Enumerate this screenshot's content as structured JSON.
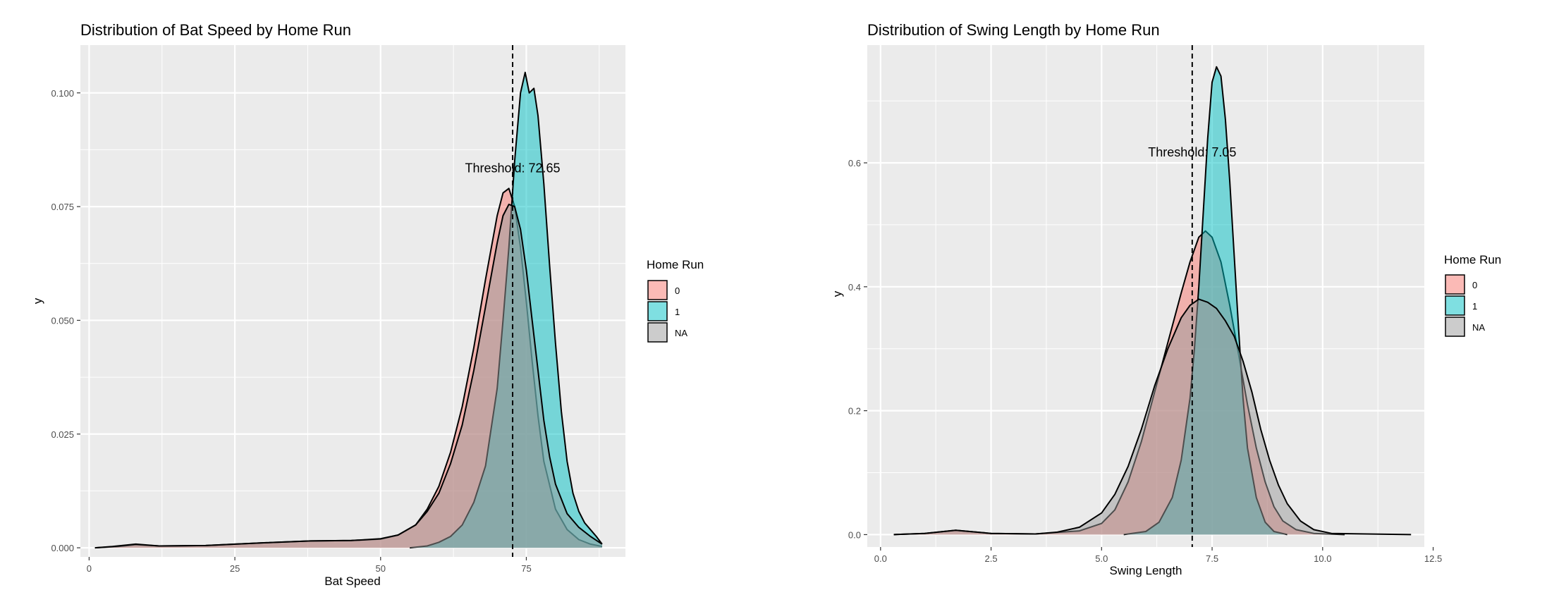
{
  "chart_data": [
    {
      "type": "area",
      "title": "Distribution of Bat Speed by Home Run",
      "xlabel": "Bat Speed",
      "ylabel": "y",
      "xlim": [
        -1.5,
        92
      ],
      "ylim": [
        -0.002,
        0.1105
      ],
      "x_ticks": [
        0,
        25,
        50,
        75
      ],
      "x_tick_labels": [
        "0",
        "25",
        "50",
        "75"
      ],
      "y_ticks": [
        0,
        0.025,
        0.05,
        0.075,
        0.1
      ],
      "y_tick_labels": [
        "0.000",
        "0.025",
        "0.050",
        "0.075",
        "0.100"
      ],
      "grid": true,
      "legend": {
        "title": "Home Run",
        "position": "right"
      },
      "annotation": {
        "text": "Threshold: 72.65",
        "x": 72.65,
        "y": 0.0825
      },
      "threshold_x": 72.65,
      "series": [
        {
          "name": "0",
          "color": "#F8766D",
          "points": [
            [
              1,
              0
            ],
            [
              5,
              0.0003
            ],
            [
              8,
              0.0007
            ],
            [
              12,
              0.0004
            ],
            [
              20,
              0.0005
            ],
            [
              30,
              0.0011
            ],
            [
              38,
              0.0015
            ],
            [
              45,
              0.0016
            ],
            [
              50,
              0.0019
            ],
            [
              53,
              0.0028
            ],
            [
              56,
              0.005
            ],
            [
              58,
              0.0085
            ],
            [
              60,
              0.0135
            ],
            [
              62,
              0.021
            ],
            [
              64,
              0.031
            ],
            [
              66,
              0.044
            ],
            [
              68,
              0.059
            ],
            [
              70,
              0.073
            ],
            [
              71,
              0.078
            ],
            [
              72,
              0.079
            ],
            [
              73,
              0.075
            ],
            [
              74,
              0.066
            ],
            [
              75,
              0.054
            ],
            [
              76,
              0.041
            ],
            [
              77,
              0.029
            ],
            [
              78,
              0.019
            ],
            [
              80,
              0.0085
            ],
            [
              82,
              0.004
            ],
            [
              84,
              0.0018
            ],
            [
              86,
              0.0008
            ],
            [
              88,
              0.0003
            ]
          ]
        },
        {
          "name": "1",
          "color": "#00BFC4",
          "points": [
            [
              55,
              0
            ],
            [
              58,
              0.0004
            ],
            [
              60,
              0.0012
            ],
            [
              62,
              0.0025
            ],
            [
              64,
              0.005
            ],
            [
              66,
              0.01
            ],
            [
              68,
              0.018
            ],
            [
              70,
              0.035
            ],
            [
              71,
              0.05
            ],
            [
              72,
              0.066
            ],
            [
              73,
              0.085
            ],
            [
              74,
              0.1
            ],
            [
              74.8,
              0.1045
            ],
            [
              75.5,
              0.1
            ],
            [
              76.3,
              0.101
            ],
            [
              77,
              0.095
            ],
            [
              78,
              0.08
            ],
            [
              79,
              0.062
            ],
            [
              80,
              0.045
            ],
            [
              81,
              0.03
            ],
            [
              82,
              0.019
            ],
            [
              83,
              0.012
            ],
            [
              84,
              0.008
            ],
            [
              85,
              0.0055
            ],
            [
              86,
              0.004
            ],
            [
              87,
              0.0025
            ],
            [
              88,
              0.0008
            ]
          ]
        },
        {
          "name": "NA",
          "color": "#999999",
          "points": [
            [
              1,
              0
            ],
            [
              4,
              0.0003
            ],
            [
              8,
              0.0008
            ],
            [
              12,
              0.0004
            ],
            [
              20,
              0.0005
            ],
            [
              30,
              0.0011
            ],
            [
              38,
              0.0015
            ],
            [
              45,
              0.0016
            ],
            [
              50,
              0.002
            ],
            [
              53,
              0.0028
            ],
            [
              56,
              0.005
            ],
            [
              58,
              0.008
            ],
            [
              60,
              0.012
            ],
            [
              62,
              0.0185
            ],
            [
              64,
              0.027
            ],
            [
              66,
              0.039
            ],
            [
              68,
              0.053
            ],
            [
              70,
              0.067
            ],
            [
              71,
              0.073
            ],
            [
              72,
              0.0755
            ],
            [
              73,
              0.075
            ],
            [
              74,
              0.07
            ],
            [
              75,
              0.061
            ],
            [
              76,
              0.05
            ],
            [
              77,
              0.039
            ],
            [
              78,
              0.028
            ],
            [
              79,
              0.02
            ],
            [
              80,
              0.014
            ],
            [
              82,
              0.0075
            ],
            [
              84,
              0.0045
            ],
            [
              86,
              0.0025
            ],
            [
              88,
              0.0008
            ]
          ]
        }
      ]
    },
    {
      "type": "area",
      "title": "Distribution of Swing Length by Home Run",
      "xlabel": "Swing Length",
      "ylabel": "y",
      "xlim": [
        -0.3,
        12.3
      ],
      "ylim": [
        -0.02,
        0.79
      ],
      "x_ticks": [
        0,
        2.5,
        5,
        7.5,
        10,
        12.5
      ],
      "x_tick_labels": [
        "0.0",
        "2.5",
        "5.0",
        "7.5",
        "10.0",
        "12.5"
      ],
      "y_ticks": [
        0,
        0.2,
        0.4,
        0.6
      ],
      "y_tick_labels": [
        "0.0",
        "0.2",
        "0.4",
        "0.6"
      ],
      "grid": true,
      "legend": {
        "title": "Home Run",
        "position": "right"
      },
      "annotation": {
        "text": "Threshold: 7.05",
        "x": 7.05,
        "y": 0.61
      },
      "threshold_x": 7.05,
      "series": [
        {
          "name": "0",
          "color": "#F8766D",
          "points": [
            [
              0.3,
              0
            ],
            [
              1,
              0.002
            ],
            [
              1.7,
              0.007
            ],
            [
              2.5,
              0.002
            ],
            [
              3.5,
              0.001
            ],
            [
              4.5,
              0.006
            ],
            [
              5,
              0.018
            ],
            [
              5.3,
              0.04
            ],
            [
              5.6,
              0.085
            ],
            [
              5.9,
              0.15
            ],
            [
              6.2,
              0.23
            ],
            [
              6.5,
              0.31
            ],
            [
              6.8,
              0.39
            ],
            [
              7,
              0.44
            ],
            [
              7.2,
              0.48
            ],
            [
              7.35,
              0.49
            ],
            [
              7.5,
              0.48
            ],
            [
              7.7,
              0.44
            ],
            [
              7.9,
              0.37
            ],
            [
              8.1,
              0.29
            ],
            [
              8.3,
              0.21
            ],
            [
              8.5,
              0.14
            ],
            [
              8.7,
              0.085
            ],
            [
              8.9,
              0.045
            ],
            [
              9.1,
              0.022
            ],
            [
              9.4,
              0.008
            ],
            [
              9.8,
              0.002
            ],
            [
              10.5,
              0
            ]
          ]
        },
        {
          "name": "1",
          "color": "#00BFC4",
          "points": [
            [
              5.5,
              0
            ],
            [
              6,
              0.005
            ],
            [
              6.3,
              0.02
            ],
            [
              6.6,
              0.06
            ],
            [
              6.8,
              0.12
            ],
            [
              7,
              0.22
            ],
            [
              7.1,
              0.3
            ],
            [
              7.2,
              0.4
            ],
            [
              7.3,
              0.52
            ],
            [
              7.4,
              0.64
            ],
            [
              7.5,
              0.73
            ],
            [
              7.6,
              0.755
            ],
            [
              7.7,
              0.74
            ],
            [
              7.8,
              0.67
            ],
            [
              7.9,
              0.57
            ],
            [
              8,
              0.45
            ],
            [
              8.1,
              0.33
            ],
            [
              8.2,
              0.22
            ],
            [
              8.3,
              0.14
            ],
            [
              8.5,
              0.06
            ],
            [
              8.7,
              0.02
            ],
            [
              8.9,
              0.005
            ],
            [
              9.2,
              0
            ]
          ]
        },
        {
          "name": "NA",
          "color": "#999999",
          "points": [
            [
              0.3,
              0
            ],
            [
              1,
              0.002
            ],
            [
              1.7,
              0.007
            ],
            [
              2.5,
              0.002
            ],
            [
              3.5,
              0.001
            ],
            [
              4,
              0.004
            ],
            [
              4.5,
              0.012
            ],
            [
              5,
              0.035
            ],
            [
              5.3,
              0.065
            ],
            [
              5.6,
              0.11
            ],
            [
              5.9,
              0.17
            ],
            [
              6.2,
              0.24
            ],
            [
              6.5,
              0.3
            ],
            [
              6.8,
              0.35
            ],
            [
              7,
              0.37
            ],
            [
              7.2,
              0.38
            ],
            [
              7.4,
              0.375
            ],
            [
              7.6,
              0.365
            ],
            [
              7.8,
              0.345
            ],
            [
              8,
              0.32
            ],
            [
              8.2,
              0.28
            ],
            [
              8.4,
              0.23
            ],
            [
              8.6,
              0.17
            ],
            [
              8.8,
              0.12
            ],
            [
              9,
              0.08
            ],
            [
              9.2,
              0.05
            ],
            [
              9.5,
              0.022
            ],
            [
              9.8,
              0.008
            ],
            [
              10.2,
              0.002
            ],
            [
              11,
              0.001
            ],
            [
              12,
              0
            ]
          ]
        }
      ]
    }
  ]
}
